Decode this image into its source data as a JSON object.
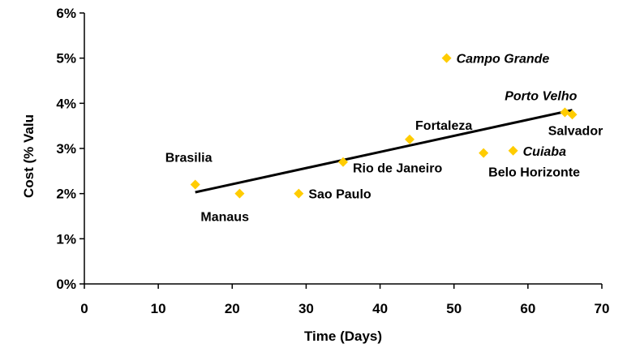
{
  "chart_data": {
    "type": "scatter",
    "xlabel": "Time (Days)",
    "ylabel": "Cost (% Valu",
    "xlim": [
      0,
      70
    ],
    "ylim": [
      0,
      6
    ],
    "x_ticks": [
      "0",
      "10",
      "20",
      "30",
      "40",
      "50",
      "60",
      "70"
    ],
    "y_ticks": [
      "0%",
      "1%",
      "2%",
      "3%",
      "4%",
      "5%",
      "6%"
    ],
    "marker_color": "#FFCC00",
    "trendline_color": "#000000",
    "grid": false,
    "points": [
      {
        "label": "Brasilia",
        "x": 15,
        "y": 2.2,
        "italic": false
      },
      {
        "label": "Manaus",
        "x": 21,
        "y": 2.0,
        "italic": false
      },
      {
        "label": "Sao Paulo",
        "x": 29,
        "y": 2.0,
        "italic": false
      },
      {
        "label": "Rio de Janeiro",
        "x": 35,
        "y": 2.7,
        "italic": false
      },
      {
        "label": "Fortaleza",
        "x": 44,
        "y": 3.2,
        "italic": false
      },
      {
        "label": "Campo Grande",
        "x": 49,
        "y": 5.0,
        "italic": true
      },
      {
        "label": "Belo Horizonte",
        "x": 54,
        "y": 2.9,
        "italic": false
      },
      {
        "label": "Cuiaba",
        "x": 58,
        "y": 2.95,
        "italic": true
      },
      {
        "label": "Porto Velho",
        "x": 65,
        "y": 3.8,
        "italic": true
      },
      {
        "label": "Salvador",
        "x": 66,
        "y": 3.75,
        "italic": false
      }
    ],
    "trendline": {
      "x": [
        15,
        66
      ],
      "y": [
        2.03,
        3.85
      ]
    }
  }
}
